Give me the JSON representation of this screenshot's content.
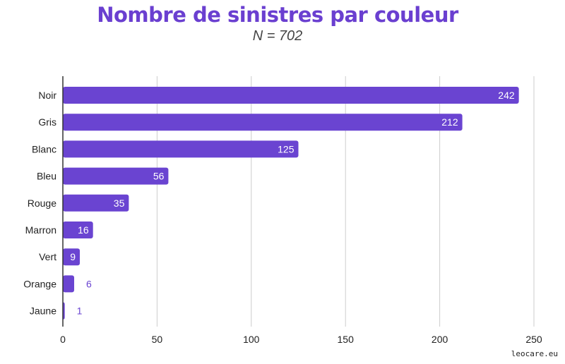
{
  "colors": {
    "bar": "#6a44d1",
    "title": "#6a3fd0",
    "grid": "#cccccc",
    "axis": "#333333",
    "label_inside": "#ffffff",
    "label_outside": "#6a44d1"
  },
  "watermark": "leocare.eu",
  "chart_data": {
    "type": "bar",
    "orientation": "horizontal",
    "title": "Nombre de sinistres par couleur",
    "subtitle": "N = 702",
    "categories": [
      "Noir",
      "Gris",
      "Blanc",
      "Bleu",
      "Rouge",
      "Marron",
      "Vert",
      "Orange",
      "Jaune"
    ],
    "values": [
      242,
      212,
      125,
      56,
      35,
      16,
      9,
      6,
      1
    ],
    "data_labels": [
      "242",
      "212",
      "125",
      "56",
      "35",
      "16",
      "9",
      "6",
      "1"
    ],
    "xlim": [
      0,
      250
    ],
    "xticks": [
      0,
      50,
      100,
      150,
      200,
      250
    ],
    "xtick_labels": [
      "0",
      "50",
      "100",
      "150",
      "200",
      "250"
    ],
    "grid": "vertical",
    "legend": "none"
  }
}
